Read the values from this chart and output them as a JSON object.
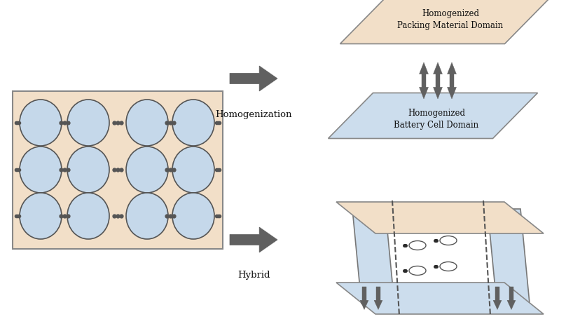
{
  "bg_color": "#ffffff",
  "pack_color": "#f2dfc8",
  "cell_color": "#ccdded",
  "circle_fill": "#c5d8ea",
  "circle_edge": "#555555",
  "dot_color": "#555555",
  "arrow_color": "#606060",
  "text_color": "#111111",
  "label_homog": "Homogenization",
  "label_hybrid": "Hybrid",
  "label_pack_domain": "Homogenized\nPacking Material Domain",
  "label_cell_domain": "Homogenized\nBattery Cell Domain",
  "figsize": [
    8.08,
    4.55
  ],
  "dpi": 100
}
